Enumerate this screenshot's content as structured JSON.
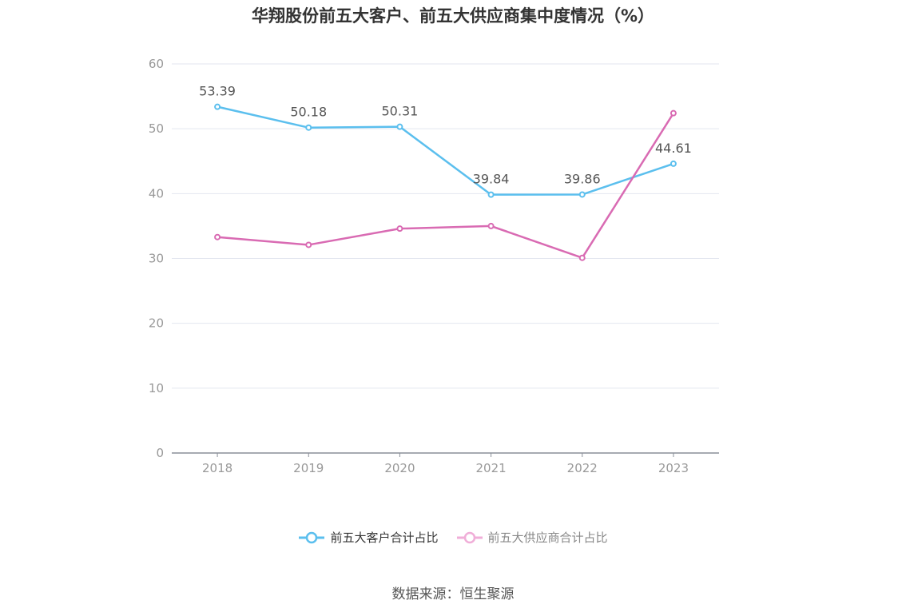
{
  "chart_data": {
    "type": "line",
    "title": "华翔股份前五大客户、前五大供应商集中度情况（%）",
    "categories": [
      "2018",
      "2019",
      "2020",
      "2021",
      "2022",
      "2023"
    ],
    "ylim": [
      0,
      60
    ],
    "yticks": [
      "0",
      "10",
      "20",
      "30",
      "40",
      "50",
      "60"
    ],
    "grid": true,
    "legend_position": "bottom",
    "series": [
      {
        "name": "前五大客户合计占比",
        "values": [
          53.39,
          50.18,
          50.31,
          39.84,
          39.86,
          44.61
        ],
        "labels": [
          "53.39",
          "50.18",
          "50.31",
          "39.84",
          "39.86",
          "44.61"
        ],
        "color": "#5bbfee"
      },
      {
        "name": "前五大供应商合计占比",
        "values": [
          33.3,
          32.1,
          34.6,
          35.0,
          30.1,
          52.4
        ],
        "color": "#d96bb3"
      }
    ]
  },
  "legend_muted_color": "#f0aed8",
  "source": "数据来源：恒生聚源"
}
